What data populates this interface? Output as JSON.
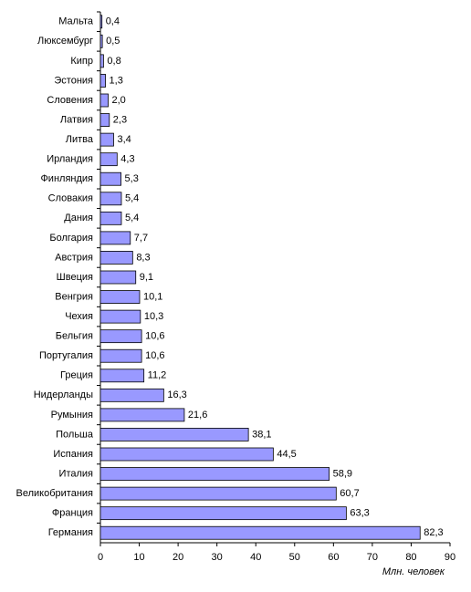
{
  "chart_data": {
    "type": "bar",
    "orientation": "horizontal",
    "categories": [
      "Мальта",
      "Люксембург",
      "Кипр",
      "Эстония",
      "Словения",
      "Латвия",
      "Литва",
      "Ирландия",
      "Финляндия",
      "Словакия",
      "Дания",
      "Болгария",
      "Австрия",
      "Швеция",
      "Венгрия",
      "Чехия",
      "Бельгия",
      "Португалия",
      "Греция",
      "Нидерланды",
      "Румыния",
      "Польша",
      "Испания",
      "Италия",
      "Великобритания",
      "Франция",
      "Германия"
    ],
    "values": [
      0.4,
      0.5,
      0.8,
      1.3,
      2.0,
      2.3,
      3.4,
      4.3,
      5.3,
      5.4,
      5.4,
      7.7,
      8.3,
      9.1,
      10.1,
      10.3,
      10.6,
      10.6,
      11.2,
      16.3,
      21.6,
      38.1,
      44.5,
      58.9,
      60.7,
      63.3,
      82.3
    ],
    "value_labels": [
      "0,4",
      "0,5",
      "0,8",
      "1,3",
      "2,0",
      "2,3",
      "3,4",
      "4,3",
      "5,3",
      "5,4",
      "5,4",
      "7,7",
      "8,3",
      "9,1",
      "10,1",
      "10,3",
      "10,6",
      "10,6",
      "11,2",
      "16,3",
      "21,6",
      "38,1",
      "44,5",
      "58,9",
      "60,7",
      "63,3",
      "82,3"
    ],
    "color": "#9999ff",
    "xlim": [
      0,
      90
    ],
    "xticks": [
      0,
      10,
      20,
      30,
      40,
      50,
      60,
      70,
      80,
      90
    ],
    "x_label": "Млн. человек",
    "grid": false
  }
}
